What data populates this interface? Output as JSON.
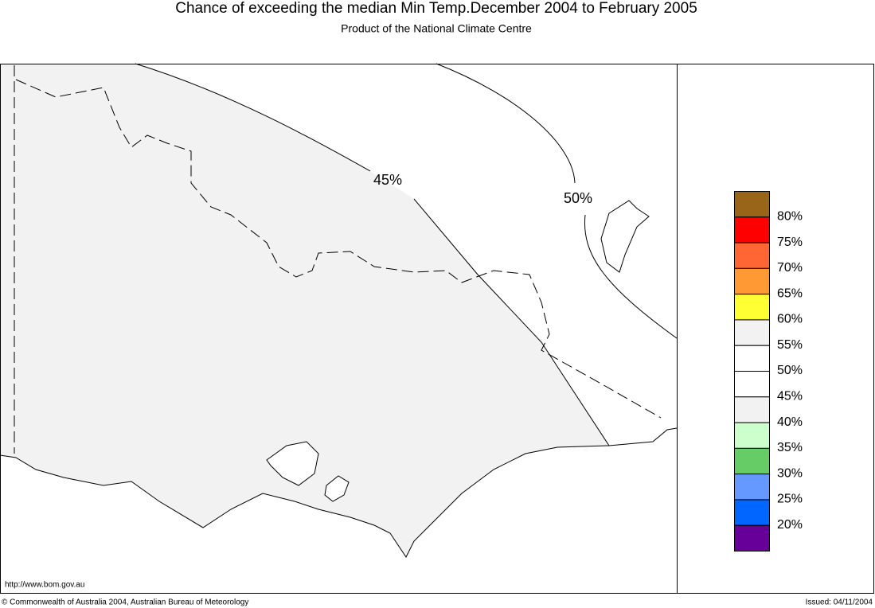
{
  "header": {
    "title": "Chance of exceeding the median Min Temp.December 2004 to February 2005",
    "subtitle": "Product of the National Climate Centre"
  },
  "map": {
    "contour_labels": [
      "45%",
      "50%"
    ]
  },
  "legend": {
    "colors": [
      "#996619",
      "#ff0000",
      "#ff6633",
      "#ff9933",
      "#ffff33",
      "#f2f2f2",
      "#ffffff",
      "#ffffff",
      "#f2f2f2",
      "#ccffcc",
      "#66cc66",
      "#6699ff",
      "#0066ff",
      "#660099"
    ],
    "labels": [
      "80%",
      "75%",
      "70%",
      "65%",
      "60%",
      "55%",
      "50%",
      "45%",
      "40%",
      "35%",
      "30%",
      "25%",
      "20%"
    ]
  },
  "footer": {
    "url": "http://www.bom.gov.au",
    "copyright": "© Commonwealth of Australia 2004, Australian Bureau of Meteorology",
    "issued": "Issued: 04/11/2004"
  }
}
